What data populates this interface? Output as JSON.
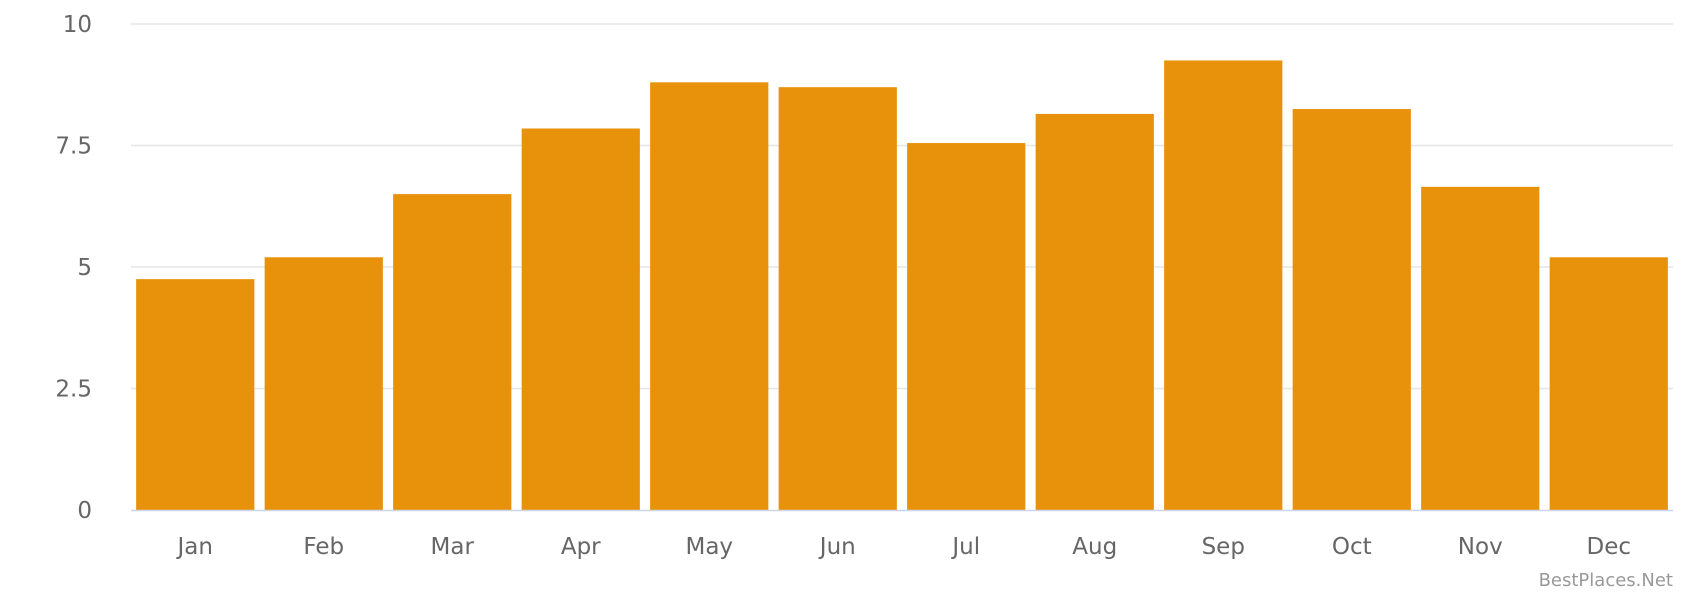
{
  "chart_data": {
    "type": "bar",
    "categories": [
      "Jan",
      "Feb",
      "Mar",
      "Apr",
      "May",
      "Jun",
      "Jul",
      "Aug",
      "Sep",
      "Oct",
      "Nov",
      "Dec"
    ],
    "values": [
      4.75,
      5.2,
      6.5,
      7.85,
      8.8,
      8.7,
      7.55,
      8.15,
      9.25,
      8.25,
      6.65,
      5.2
    ],
    "title": "",
    "xlabel": "",
    "ylabel": "",
    "ylim": [
      0,
      10
    ],
    "yticks": [
      0,
      2.5,
      5,
      7.5,
      10
    ],
    "ytick_labels": [
      "0",
      "2.5",
      "5",
      "7.5",
      "10"
    ],
    "grid": true,
    "legend": "none",
    "bar_color": "#E8910A",
    "grid_color": "#E6E6E6",
    "axis_color": "#CCD6EB"
  },
  "credit": "BestPlaces.Net"
}
